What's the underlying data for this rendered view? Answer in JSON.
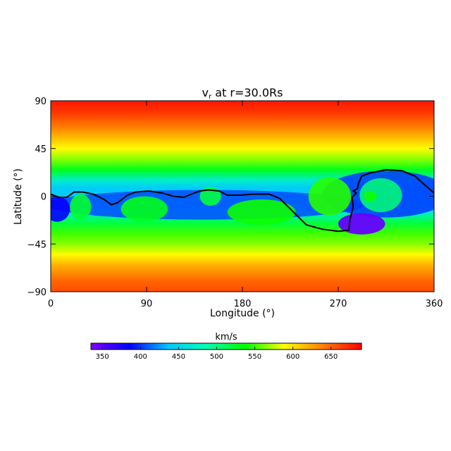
{
  "chart_data": {
    "type": "heatmap",
    "title": "v",
    "title_sub": "r",
    "title_suffix": " at r=30.0Rs",
    "xlabel": "Longitude (°)",
    "ylabel": "Latitude (°)",
    "xlim": [
      0,
      360
    ],
    "ylim": [
      -90,
      90
    ],
    "x_ticks": [
      0,
      90,
      180,
      270,
      360
    ],
    "y_ticks": [
      90,
      45,
      0,
      -45,
      -90
    ],
    "y_tick_labels": [
      "90",
      "45",
      "0",
      "−45",
      "−90"
    ],
    "colorbar": {
      "label": "km/s",
      "range": [
        335,
        690
      ],
      "ticks": [
        350,
        400,
        450,
        500,
        550,
        600,
        650
      ],
      "colormap": [
        "#8000ff",
        "#0000ff",
        "#00c8ff",
        "#00ffb0",
        "#00ff00",
        "#ffff00",
        "#ff8000",
        "#ff0000"
      ]
    },
    "background_speed": {
      "lat": [
        90,
        80,
        65,
        55,
        45,
        35,
        25,
        15,
        8,
        -8,
        -15,
        -25,
        -35,
        -45,
        -55,
        -65,
        -80,
        -90
      ],
      "kms": [
        680,
        670,
        640,
        615,
        590,
        565,
        530,
        470,
        440,
        440,
        470,
        520,
        550,
        565,
        590,
        620,
        650,
        660
      ]
    },
    "current_sheet": [
      [
        0,
        2
      ],
      [
        8,
        -1
      ],
      [
        15,
        -1
      ],
      [
        22,
        4
      ],
      [
        30,
        4
      ],
      [
        40,
        2
      ],
      [
        50,
        -3
      ],
      [
        57,
        -8
      ],
      [
        63,
        -6
      ],
      [
        72,
        1
      ],
      [
        80,
        4
      ],
      [
        92,
        5
      ],
      [
        105,
        3
      ],
      [
        115,
        0
      ],
      [
        125,
        -1
      ],
      [
        132,
        2
      ],
      [
        140,
        5
      ],
      [
        148,
        6
      ],
      [
        158,
        5
      ],
      [
        166,
        1
      ],
      [
        178,
        1
      ],
      [
        190,
        2
      ],
      [
        205,
        2
      ],
      [
        215,
        -2
      ],
      [
        225,
        -12
      ],
      [
        240,
        -27
      ],
      [
        255,
        -31
      ],
      [
        270,
        -33
      ],
      [
        280,
        -32
      ],
      [
        281,
        -22
      ],
      [
        284,
        -10
      ],
      [
        283,
        -1
      ],
      [
        287,
        3
      ],
      [
        284,
        5
      ],
      [
        288,
        7
      ],
      [
        289,
        12
      ],
      [
        292,
        19
      ],
      [
        300,
        22
      ],
      [
        315,
        25
      ],
      [
        330,
        24
      ],
      [
        342,
        19
      ],
      [
        352,
        10
      ],
      [
        360,
        3
      ]
    ]
  }
}
